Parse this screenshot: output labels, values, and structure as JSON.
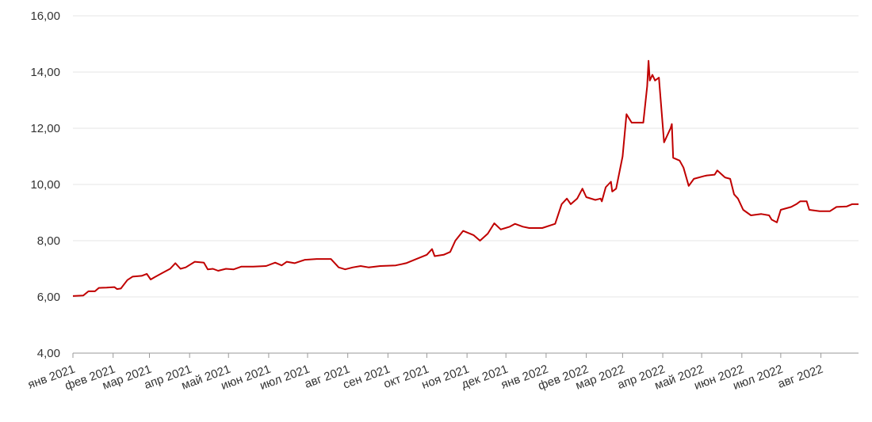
{
  "chart_data": {
    "type": "line",
    "x": [
      0,
      8,
      12,
      17,
      20,
      26,
      32,
      34,
      37,
      42,
      46,
      53,
      57,
      60,
      63,
      69,
      75,
      79,
      83,
      87,
      94,
      101,
      104,
      108,
      112,
      118,
      124,
      130,
      139,
      149,
      156,
      161,
      165,
      171,
      179,
      188,
      199,
      205,
      210,
      216,
      222,
      228,
      237,
      249,
      257,
      265,
      273,
      277,
      279,
      286,
      291,
      295,
      301,
      309,
      314,
      320,
      325,
      330,
      337,
      341,
      347,
      352,
      362,
      372,
      377,
      381,
      384,
      389,
      393,
      396,
      403,
      407,
      408,
      411,
      415,
      416,
      419,
      424,
      427,
      431,
      440,
      443,
      444,
      445,
      447,
      449,
      452,
      456,
      461,
      462,
      463,
      468,
      471,
      475,
      479,
      487,
      489,
      495,
      497,
      503,
      507,
      510,
      513,
      517,
      523,
      531,
      537,
      539,
      543,
      546,
      554,
      558,
      561,
      566,
      568,
      576,
      584,
      589,
      597,
      601,
      606
    ],
    "series": [
      {
        "color": "#c00000",
        "values": [
          6.03,
          6.05,
          6.2,
          6.2,
          6.32,
          6.33,
          6.35,
          6.28,
          6.3,
          6.6,
          6.72,
          6.75,
          6.82,
          6.62,
          6.7,
          6.85,
          7.0,
          7.2,
          7.0,
          7.05,
          7.25,
          7.22,
          6.98,
          7.0,
          6.93,
          7.0,
          6.98,
          7.08,
          7.08,
          7.1,
          7.22,
          7.12,
          7.25,
          7.2,
          7.32,
          7.35,
          7.35,
          7.05,
          6.98,
          7.05,
          7.1,
          7.05,
          7.1,
          7.12,
          7.2,
          7.35,
          7.5,
          7.7,
          7.45,
          7.5,
          7.6,
          8.0,
          8.35,
          8.2,
          8.0,
          8.25,
          8.62,
          8.4,
          8.5,
          8.6,
          8.5,
          8.45,
          8.45,
          8.6,
          9.3,
          9.5,
          9.3,
          9.5,
          9.85,
          9.55,
          9.45,
          9.5,
          9.4,
          9.9,
          10.1,
          9.75,
          9.85,
          11.0,
          12.5,
          12.2,
          12.2,
          13.5,
          14.4,
          13.7,
          13.9,
          13.7,
          13.8,
          11.5,
          12.0,
          12.15,
          10.95,
          10.85,
          10.6,
          9.95,
          10.2,
          10.3,
          10.32,
          10.35,
          10.5,
          10.25,
          10.2,
          9.65,
          9.5,
          9.1,
          8.9,
          8.95,
          8.9,
          8.75,
          8.65,
          9.1,
          9.2,
          9.3,
          9.4,
          9.4,
          9.1,
          9.05,
          9.05,
          9.2,
          9.22,
          9.3,
          9.3
        ]
      }
    ],
    "xlim": [
      0,
      606
    ],
    "xticks": [
      {
        "value": 0,
        "label": "янв 2021"
      },
      {
        "value": 31,
        "label": "фев 2021"
      },
      {
        "value": 59,
        "label": "мар 2021"
      },
      {
        "value": 90,
        "label": "апр 2021"
      },
      {
        "value": 120,
        "label": "май 2021"
      },
      {
        "value": 151,
        "label": "июн 2021"
      },
      {
        "value": 181,
        "label": "июл 2021"
      },
      {
        "value": 212,
        "label": "авг 2021"
      },
      {
        "value": 243,
        "label": "сен 2021"
      },
      {
        "value": 273,
        "label": "окт 2021"
      },
      {
        "value": 304,
        "label": "ноя 2021"
      },
      {
        "value": 334,
        "label": "дек 2021"
      },
      {
        "value": 365,
        "label": "янв 2022"
      },
      {
        "value": 396,
        "label": "фев 2022"
      },
      {
        "value": 424,
        "label": "мар 2022"
      },
      {
        "value": 455,
        "label": "апр 2022"
      },
      {
        "value": 485,
        "label": "май 2022"
      },
      {
        "value": 516,
        "label": "июн 2022"
      },
      {
        "value": 546,
        "label": "июл 2022"
      },
      {
        "value": 577,
        "label": "авг 2022"
      }
    ],
    "ylim": [
      4,
      16
    ],
    "yticks": [
      {
        "value": 4,
        "label": "4,00"
      },
      {
        "value": 6,
        "label": "6,00"
      },
      {
        "value": 8,
        "label": "8,00"
      },
      {
        "value": 10,
        "label": "10,00"
      },
      {
        "value": 12,
        "label": "12,00"
      },
      {
        "value": 14,
        "label": "14,00"
      },
      {
        "value": 16,
        "label": "16,00"
      }
    ],
    "grid": true
  }
}
